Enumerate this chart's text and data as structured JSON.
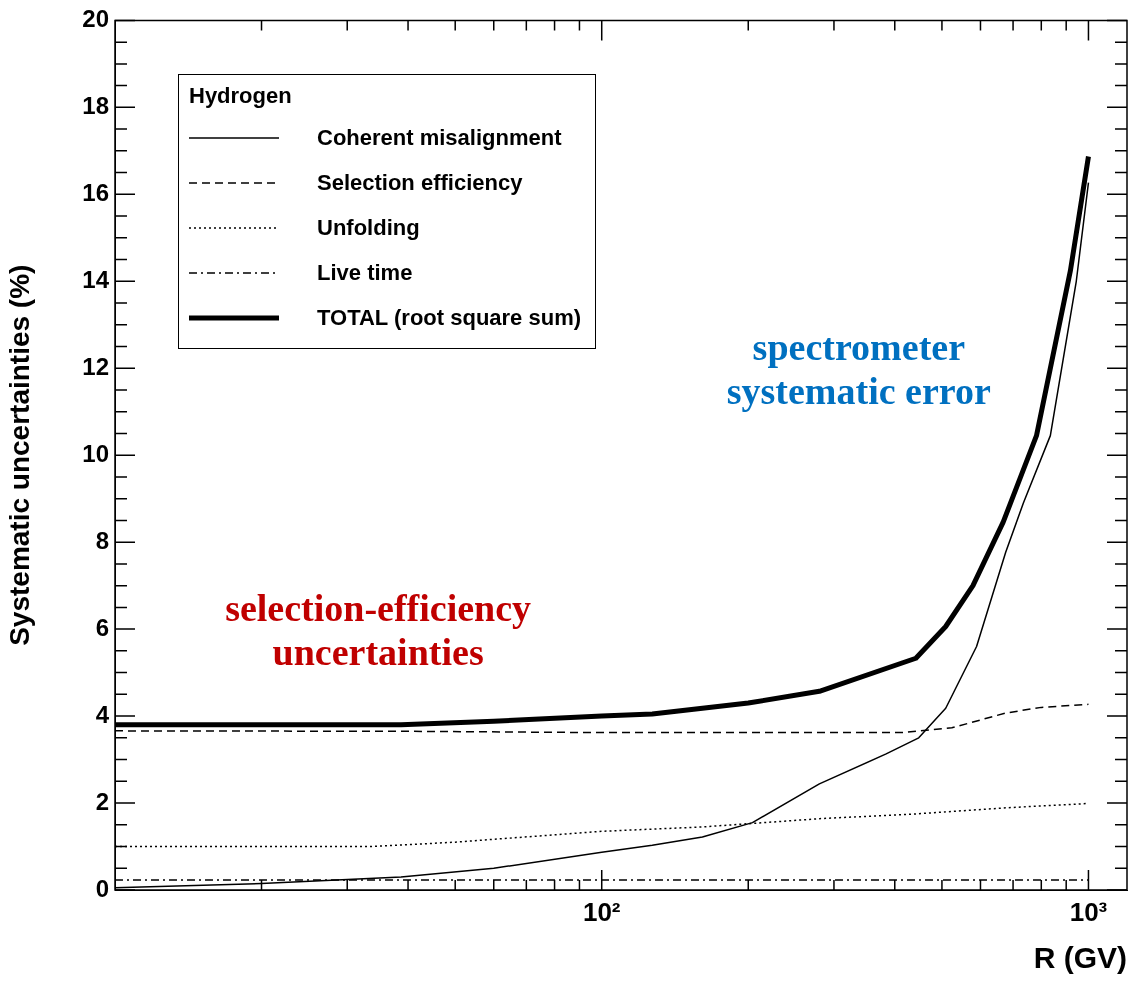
{
  "chart_data": {
    "type": "line",
    "xlabel": "R (GV)",
    "ylabel": "Systematic uncertainties (%)",
    "legend_title": "Hydrogen",
    "legend": "top left",
    "grid": false,
    "log": "x",
    "xlim": [
      10,
      1200
    ],
    "ylim": [
      0,
      20
    ],
    "xticks": [
      {
        "value": 20,
        "label": null
      },
      {
        "value": 30,
        "label": null
      },
      {
        "value": 40,
        "label": null
      },
      {
        "value": 50,
        "label": null
      },
      {
        "value": 60,
        "label": null
      },
      {
        "value": 70,
        "label": null
      },
      {
        "value": 80,
        "label": null
      },
      {
        "value": 90,
        "label": null
      },
      {
        "value": 100,
        "label": "10²"
      },
      {
        "value": 200,
        "label": null
      },
      {
        "value": 300,
        "label": null
      },
      {
        "value": 400,
        "label": null
      },
      {
        "value": 500,
        "label": null
      },
      {
        "value": 600,
        "label": null
      },
      {
        "value": 700,
        "label": null
      },
      {
        "value": 800,
        "label": null
      },
      {
        "value": 900,
        "label": null
      },
      {
        "value": 1000,
        "label": "10³"
      }
    ],
    "yticks": [
      0,
      {
        "value": 0.5,
        "label": null
      },
      {
        "value": 1,
        "label": null
      },
      {
        "value": 1.5,
        "label": null
      },
      2,
      {
        "value": 2.5,
        "label": null
      },
      {
        "value": 3,
        "label": null
      },
      {
        "value": 3.5,
        "label": null
      },
      4,
      {
        "value": 4.5,
        "label": null
      },
      {
        "value": 5,
        "label": null
      },
      {
        "value": 5.5,
        "label": null
      },
      6,
      {
        "value": 6.5,
        "label": null
      },
      {
        "value": 7,
        "label": null
      },
      {
        "value": 7.5,
        "label": null
      },
      8,
      {
        "value": 8.5,
        "label": null
      },
      {
        "value": 9,
        "label": null
      },
      {
        "value": 9.5,
        "label": null
      },
      10,
      {
        "value": 10.5,
        "label": null
      },
      {
        "value": 11,
        "label": null
      },
      {
        "value": 11.5,
        "label": null
      },
      12,
      {
        "value": 12.5,
        "label": null
      },
      {
        "value": 13,
        "label": null
      },
      {
        "value": 13.5,
        "label": null
      },
      14,
      {
        "value": 14.5,
        "label": null
      },
      {
        "value": 15,
        "label": null
      },
      {
        "value": 15.5,
        "label": null
      },
      16,
      {
        "value": 16.5,
        "label": null
      },
      {
        "value": 17,
        "label": null
      },
      {
        "value": 17.5,
        "label": null
      },
      18,
      {
        "value": 18.5,
        "label": null
      },
      {
        "value": 19,
        "label": null
      },
      {
        "value": 19.5,
        "label": null
      },
      20
    ],
    "series": [
      {
        "name": "Coherent misalignment",
        "color": "#000000",
        "line_style": "solid",
        "x": [
          10,
          20,
          38.7,
          60,
          100,
          127,
          161,
          204,
          280,
          384,
          448,
          509,
          589,
          676,
          735,
          835,
          944,
          1000
        ],
        "values": [
          0.05,
          0.15,
          0.3,
          0.5,
          0.87,
          1.03,
          1.22,
          1.55,
          2.44,
          3.13,
          3.5,
          4.18,
          5.6,
          7.77,
          8.9,
          10.45,
          14.0,
          16.27
        ]
      },
      {
        "name": "Selection efficiency",
        "color": "#000000",
        "line_style": "dashed",
        "x": [
          10,
          40,
          100,
          200,
          415,
          524,
          676,
          800,
          1000
        ],
        "values": [
          3.66,
          3.65,
          3.62,
          3.62,
          3.62,
          3.73,
          4.07,
          4.2,
          4.27
        ]
      },
      {
        "name": "Unfolding",
        "color": "#000000",
        "line_style": "dotted",
        "x": [
          10,
          33.6,
          50,
          100,
          161,
          280,
          442,
          676,
          1000
        ],
        "values": [
          1.0,
          1.0,
          1.1,
          1.35,
          1.45,
          1.64,
          1.75,
          1.89,
          1.99
        ]
      },
      {
        "name": "Live time",
        "color": "#000000",
        "line_style": "dashdot",
        "x": [
          10,
          1000
        ],
        "values": [
          0.23,
          0.23
        ]
      },
      {
        "name": "TOTAL (root square sum)",
        "color": "#000000",
        "line_style": "solid",
        "x": [
          10,
          38.7,
          60,
          100,
          127,
          200,
          280,
          442,
          509,
          579,
          668,
          782,
          918,
          1000
        ],
        "values": [
          3.8,
          3.8,
          3.88,
          4.0,
          4.05,
          4.3,
          4.57,
          5.33,
          6.06,
          7.0,
          8.46,
          10.45,
          14.24,
          16.87
        ]
      }
    ],
    "annotations": [
      "spectrometer\nsystematic error",
      "selection-efficiency\nuncertainties"
    ]
  }
}
